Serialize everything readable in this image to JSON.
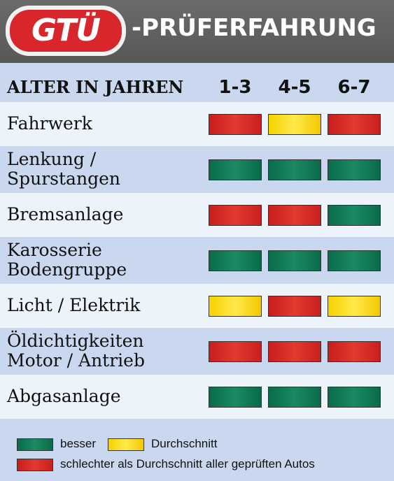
{
  "header": {
    "logo_text": "GTÜ",
    "title": "-PRÜFERFAHRUNG"
  },
  "table": {
    "label_header": "ALTER IN JAHREN",
    "age_columns": [
      "1-3",
      "4-5",
      "6-7"
    ],
    "rows": [
      {
        "label": "Fahrwerk",
        "ratings": [
          "red",
          "yellow",
          "red"
        ]
      },
      {
        "label": "Lenkung /\nSpurstangen",
        "ratings": [
          "green",
          "green",
          "green"
        ]
      },
      {
        "label": "Bremsanlage",
        "ratings": [
          "red",
          "red",
          "green"
        ]
      },
      {
        "label": "Karosserie\nBodengruppe",
        "ratings": [
          "green",
          "green",
          "green"
        ]
      },
      {
        "label": "Licht / Elektrik",
        "ratings": [
          "yellow",
          "red",
          "yellow"
        ]
      },
      {
        "label": "Öldichtigkeiten\nMotor / Antrieb",
        "ratings": [
          "red",
          "red",
          "red"
        ]
      },
      {
        "label": "Abgasanlage",
        "ratings": [
          "green",
          "green",
          "green"
        ]
      }
    ]
  },
  "legend": {
    "green_label": "besser",
    "yellow_label": "Durchschnitt",
    "red_label": "schlechter als Durchschnitt aller geprüften Autos"
  },
  "colors": {
    "red": "#d42a26",
    "yellow": "#fbe02a",
    "green": "#127a56",
    "header_bg": "#626262",
    "logo_red": "#d9262c"
  }
}
